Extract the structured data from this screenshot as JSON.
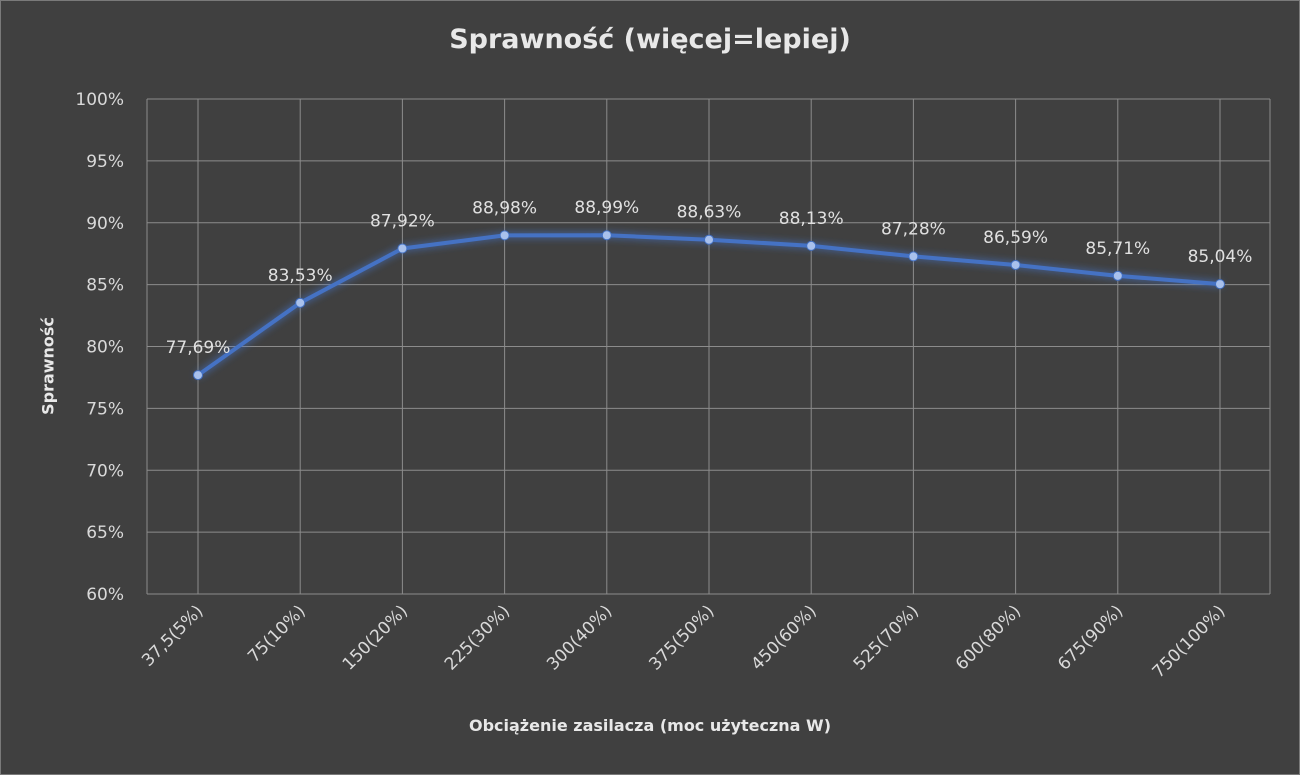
{
  "chart_data": {
    "type": "line",
    "title": "Sprawność (więcej=lepiej)",
    "xlabel": "Obciążenie zasilacza (moc użyteczna W)",
    "ylabel": "Sprawność",
    "categories": [
      "37,5(5%)",
      "75(10%)",
      "150(20%)",
      "225(30%)",
      "300(40%)",
      "375(50%)",
      "450(60%)",
      "525(70%)",
      "600(80%)",
      "675(90%)",
      "750(100%)"
    ],
    "series": [
      {
        "values": [
          77.69,
          83.53,
          87.92,
          88.98,
          88.99,
          88.63,
          88.13,
          87.28,
          86.59,
          85.71,
          85.04
        ],
        "labels": [
          "77,69%",
          "83,53%",
          "87,92%",
          "88,98%",
          "88,99%",
          "88,63%",
          "88,13%",
          "87,28%",
          "86,59%",
          "85,71%",
          "85,04%"
        ]
      }
    ],
    "ylim": [
      60,
      100
    ],
    "yticks": [
      60,
      65,
      70,
      75,
      80,
      85,
      90,
      95,
      100
    ],
    "ytick_labels": [
      "60%",
      "65%",
      "70%",
      "75%",
      "80%",
      "85%",
      "90%",
      "95%",
      "100%"
    ],
    "grid": true,
    "legend": "none",
    "colors": {
      "background": "#404040",
      "line": "#4472c4",
      "marker": "#a9c1ec",
      "grid": "#8c8c8c",
      "text": "#d9d9d9"
    }
  }
}
